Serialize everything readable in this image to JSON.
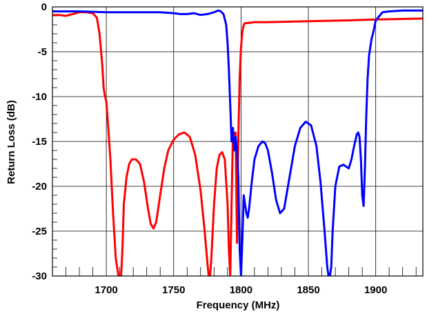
{
  "chart_data": {
    "type": "line",
    "title": "",
    "xlabel": "Frequency (MHz)",
    "ylabel": "Return Loss (dB)",
    "xlim": [
      1660,
      1935
    ],
    "ylim": [
      -30,
      0
    ],
    "x_ticks": [
      1700,
      1750,
      1800,
      1850,
      1900
    ],
    "y_ticks": [
      0,
      -5,
      -10,
      -15,
      -20,
      -25,
      -30
    ],
    "x_tick_labels": [
      "1700",
      "1750",
      "1800",
      "1850",
      "1900"
    ],
    "y_tick_labels": [
      "0",
      "-5",
      "-10",
      "-15",
      "-20",
      "-25",
      "-30"
    ],
    "grid": true,
    "series": [
      {
        "color": "#ff0000",
        "x": [
          1660,
          1665,
          1670,
          1675,
          1680,
          1685,
          1690,
          1693,
          1695,
          1697,
          1698,
          1699,
          1700,
          1701,
          1703,
          1705,
          1707,
          1709,
          1711,
          1712,
          1713,
          1715,
          1717,
          1719,
          1722,
          1725,
          1728,
          1731,
          1733,
          1735,
          1737,
          1740,
          1743,
          1746,
          1750,
          1754,
          1758,
          1762,
          1766,
          1770,
          1773,
          1775,
          1776,
          1777,
          1778,
          1780,
          1782,
          1784,
          1786,
          1788,
          1790,
          1791,
          1792,
          1793,
          1794,
          1795,
          1796,
          1797,
          1798,
          1799,
          1800,
          1801,
          1802,
          1803,
          1805,
          1810,
          1820,
          1850,
          1880,
          1900,
          1935
        ],
        "y": [
          -0.9,
          -0.9,
          -1.0,
          -0.8,
          -0.6,
          -0.6,
          -0.7,
          -1.2,
          -3.0,
          -6.5,
          -9.0,
          -10.0,
          -10.5,
          -12.5,
          -17.0,
          -23.0,
          -28.0,
          -30.0,
          -30.0,
          -27.0,
          -22.0,
          -19.0,
          -17.5,
          -17.0,
          -17.0,
          -17.5,
          -19.5,
          -22.5,
          -24.2,
          -24.7,
          -24.0,
          -21.0,
          -18.0,
          -16.0,
          -14.8,
          -14.2,
          -14.0,
          -14.5,
          -16.5,
          -20.5,
          -25.0,
          -28.5,
          -30.0,
          -30.0,
          -28.0,
          -22.0,
          -18.0,
          -16.5,
          -16.2,
          -17.0,
          -22.0,
          -27.0,
          -30.0,
          -22.0,
          -14.0,
          -14.2,
          -14.0,
          -26.3,
          -14.5,
          -8.0,
          -4.5,
          -2.8,
          -2.0,
          -1.8,
          -1.8,
          -1.7,
          -1.7,
          -1.6,
          -1.5,
          -1.4,
          -1.3
        ]
      },
      {
        "color": "#0000ff",
        "x": [
          1660,
          1680,
          1700,
          1720,
          1740,
          1750,
          1755,
          1760,
          1765,
          1770,
          1775,
          1780,
          1783,
          1785,
          1787,
          1789,
          1790,
          1791,
          1792,
          1793,
          1794,
          1795,
          1796,
          1797,
          1798,
          1799,
          1800,
          1801,
          1802,
          1803,
          1804,
          1805,
          1806,
          1808,
          1810,
          1813,
          1816,
          1818,
          1820,
          1823,
          1826,
          1829,
          1832,
          1836,
          1840,
          1844,
          1848,
          1852,
          1856,
          1859,
          1862,
          1864,
          1865,
          1866,
          1867,
          1868,
          1870,
          1873,
          1876,
          1878,
          1880,
          1882,
          1884,
          1886,
          1887,
          1888,
          1889,
          1890,
          1891,
          1892,
          1893,
          1894,
          1895,
          1896,
          1897,
          1898,
          1900,
          1905,
          1910,
          1920,
          1935
        ],
        "y": [
          -0.5,
          -0.5,
          -0.6,
          -0.6,
          -0.6,
          -0.7,
          -0.8,
          -0.8,
          -0.7,
          -0.9,
          -0.8,
          -0.6,
          -0.4,
          -0.5,
          -0.8,
          -2.0,
          -4.0,
          -7.0,
          -11.0,
          -15.0,
          -13.5,
          -16.0,
          -14.5,
          -16.0,
          -19.0,
          -27.0,
          -30.0,
          -26.0,
          -21.0,
          -22.0,
          -23.0,
          -23.5,
          -22.5,
          -19.5,
          -17.0,
          -15.5,
          -15.0,
          -15.2,
          -16.0,
          -18.5,
          -21.5,
          -23.0,
          -22.5,
          -19.0,
          -15.5,
          -13.5,
          -12.8,
          -13.2,
          -15.5,
          -19.5,
          -25.0,
          -29.0,
          -30.0,
          -30.0,
          -29.0,
          -25.0,
          -20.0,
          -17.8,
          -17.6,
          -17.8,
          -18.0,
          -17.0,
          -15.5,
          -14.2,
          -14.0,
          -14.5,
          -17.0,
          -21.0,
          -22.2,
          -18.0,
          -12.0,
          -8.0,
          -5.5,
          -4.5,
          -3.5,
          -3.0,
          -1.5,
          -0.6,
          -0.5,
          -0.4,
          -0.4
        ]
      }
    ]
  }
}
